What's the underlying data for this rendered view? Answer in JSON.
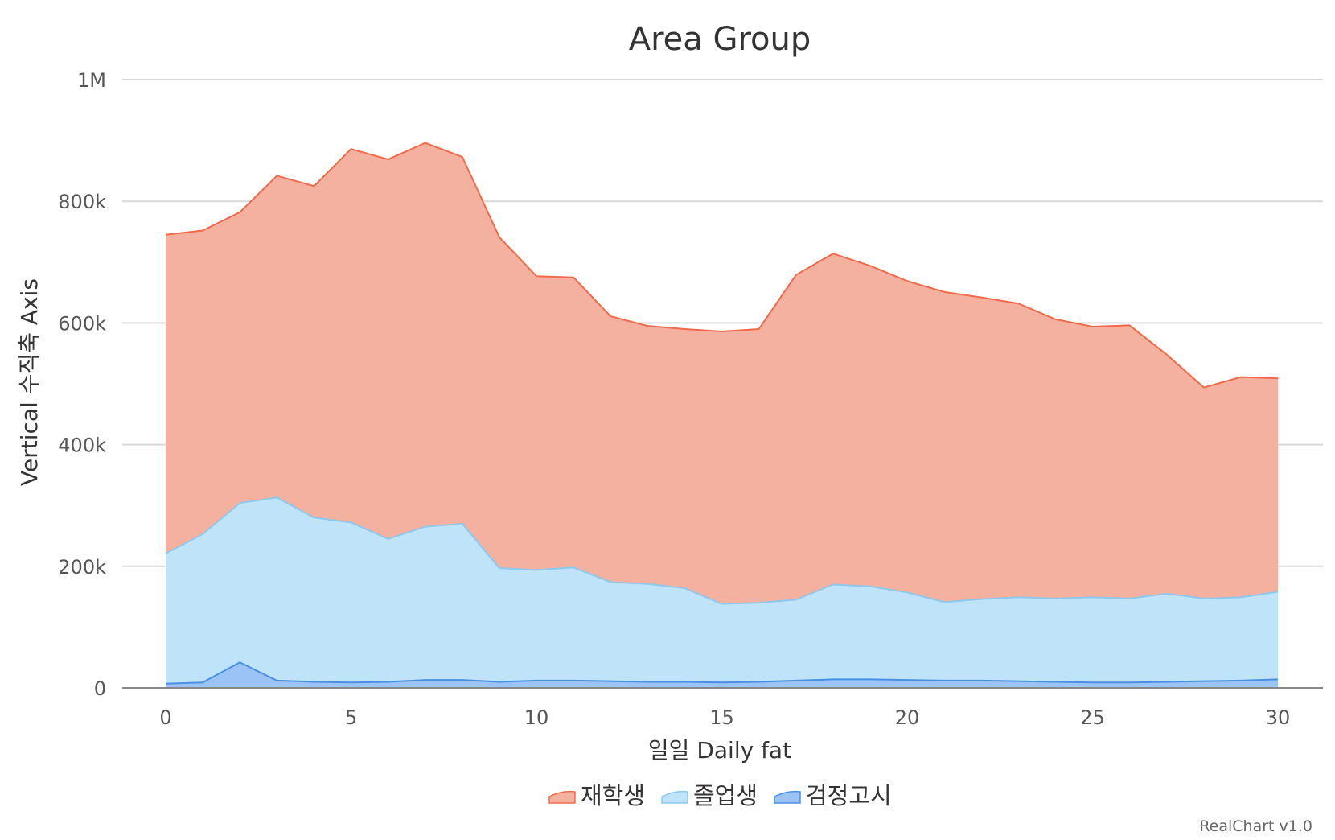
{
  "chart_data": {
    "type": "area",
    "title": "Area Group",
    "xlabel": "일일 Daily fat",
    "ylabel": "Vertical 수직축 Axis",
    "xlim": [
      0,
      30
    ],
    "ylim": [
      0,
      1000000
    ],
    "x_ticks": [
      0,
      5,
      10,
      15,
      20,
      25,
      30
    ],
    "x_tick_labels": [
      "0",
      "5",
      "10",
      "15",
      "20",
      "25",
      "30"
    ],
    "y_ticks": [
      0,
      200000,
      400000,
      600000,
      800000,
      1000000
    ],
    "y_tick_labels": [
      "0",
      "200k",
      "400k",
      "600k",
      "800k",
      "1M"
    ],
    "grid": true,
    "legend_position": "bottom",
    "x": [
      0,
      1,
      2,
      3,
      4,
      5,
      6,
      7,
      8,
      9,
      10,
      11,
      12,
      13,
      14,
      15,
      16,
      17,
      18,
      19,
      20,
      21,
      22,
      23,
      24,
      25,
      26,
      27,
      28,
      29,
      30
    ],
    "series": [
      {
        "name": "재학생",
        "color": "#f06a4a",
        "fill": "#f5b19f",
        "values": [
          745000,
          752000,
          782000,
          842000,
          825000,
          886000,
          869000,
          896000,
          873000,
          741000,
          677000,
          675000,
          611000,
          595000,
          590000,
          586000,
          590000,
          679000,
          714000,
          694000,
          669000,
          651000,
          642000,
          632000,
          606000,
          594000,
          596000,
          548000,
          494000,
          511000,
          509000
        ]
      },
      {
        "name": "졸업생",
        "color": "#8ec8ec",
        "fill": "#bfe4fa",
        "values": [
          221000,
          253000,
          304000,
          313000,
          280000,
          272000,
          245000,
          265000,
          270000,
          197000,
          194000,
          198000,
          174000,
          171000,
          164000,
          138000,
          140000,
          145000,
          170000,
          167000,
          157000,
          141000,
          146000,
          149000,
          147000,
          149000,
          147000,
          155000,
          147000,
          149000,
          158000
        ]
      },
      {
        "name": "검정고시",
        "color": "#4a90e2",
        "fill": "#9cc3f5",
        "values": [
          7000,
          9000,
          42000,
          12000,
          10000,
          9000,
          10000,
          13000,
          13000,
          10000,
          12000,
          12000,
          11000,
          10000,
          10000,
          9000,
          10000,
          12000,
          14000,
          14000,
          13000,
          12000,
          12000,
          11000,
          10000,
          9000,
          9000,
          10000,
          11000,
          12000,
          14000
        ]
      }
    ],
    "credit": "RealChart v1.0"
  }
}
